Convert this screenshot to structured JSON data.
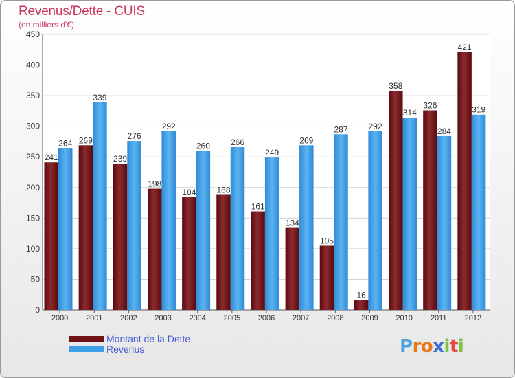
{
  "header": {
    "title": "Revenus/Dette - CUIS",
    "subtitle": "(en milliers d'€)"
  },
  "chart_data": {
    "type": "bar",
    "title": "Revenus/Dette - CUIS",
    "subtitle": "(en milliers d'€)",
    "categories": [
      "2000",
      "2001",
      "2002",
      "2003",
      "2004",
      "2005",
      "2006",
      "2007",
      "2008",
      "2009",
      "2010",
      "2011",
      "2012"
    ],
    "series": [
      {
        "name": "Montant de la Dette",
        "values": [
          241,
          269,
          239,
          198,
          184,
          188,
          161,
          134,
          105,
          16,
          358,
          326,
          421
        ],
        "color": "#6e1216"
      },
      {
        "name": "Revenus",
        "values": [
          264,
          339,
          276,
          292,
          260,
          266,
          249,
          269,
          287,
          292,
          314,
          284,
          319
        ],
        "color": "#3d9fe6"
      }
    ],
    "ylim": [
      0,
      450
    ],
    "yticks": [
      0,
      50,
      100,
      150,
      200,
      250,
      300,
      350,
      400,
      450
    ],
    "grid": true,
    "legend_position": "bottom-left"
  },
  "legend": {
    "items": [
      {
        "label": "Montant de la Dette",
        "color": "#6e1216"
      },
      {
        "label": "Revenus",
        "color": "#3d9fe6"
      }
    ]
  },
  "logo": {
    "letters": [
      "P",
      "r",
      "o",
      "x",
      "i",
      "t",
      "i"
    ],
    "colors": [
      "#4fa1e0",
      "#e8781a",
      "#e8781a",
      "#3a6fd4",
      "#7cc242",
      "#e84a3a",
      "#7cc242"
    ]
  }
}
